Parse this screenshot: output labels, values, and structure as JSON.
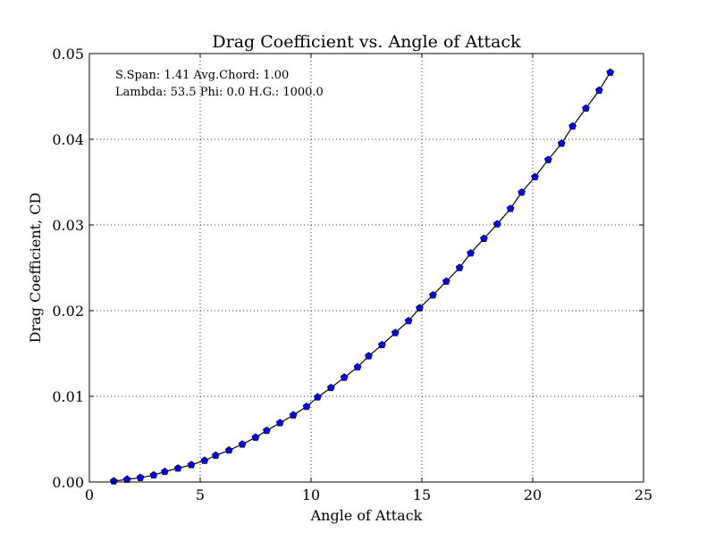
{
  "chart_data": {
    "type": "line",
    "title": "Drag Coefficient vs. Angle of Attack",
    "xlabel": "Angle of Attack",
    "ylabel": "Drag Coefficient, CD",
    "xlim": [
      0,
      25
    ],
    "ylim": [
      0,
      0.05
    ],
    "xticks": [
      "0",
      "5",
      "10",
      "15",
      "20",
      "25"
    ],
    "yticks": [
      "0.00",
      "0.01",
      "0.02",
      "0.03",
      "0.04",
      "0.05"
    ],
    "grid": true,
    "annotations": [
      "S.Span: 1.41 Avg.Chord: 1.00",
      "Lambda: 53.5 Phi:  0.0 H.G.: 1000.0"
    ],
    "series": [
      {
        "line_color": "#000000",
        "marker_color": "#0000ff",
        "marker": "pentagon",
        "x": [
          1.1,
          1.7,
          2.3,
          2.9,
          3.4,
          4.0,
          4.6,
          5.2,
          5.7,
          6.3,
          6.9,
          7.5,
          8.0,
          8.6,
          9.2,
          9.8,
          10.3,
          10.9,
          11.5,
          12.1,
          12.6,
          13.2,
          13.8,
          14.4,
          14.9,
          15.5,
          16.1,
          16.7,
          17.2,
          17.8,
          18.4,
          19.0,
          19.5,
          20.1,
          20.7,
          21.3,
          21.8,
          22.4,
          23.0,
          23.5
        ],
        "y": [
          0.0001,
          0.0003,
          0.0005,
          0.0008,
          0.0012,
          0.0016,
          0.002,
          0.0025,
          0.0031,
          0.0037,
          0.0044,
          0.0052,
          0.006,
          0.0069,
          0.0078,
          0.0088,
          0.0099,
          0.011,
          0.0122,
          0.0134,
          0.0147,
          0.016,
          0.0174,
          0.0188,
          0.0203,
          0.0218,
          0.0234,
          0.025,
          0.0267,
          0.0284,
          0.0301,
          0.0319,
          0.0338,
          0.0356,
          0.0376,
          0.0395,
          0.0415,
          0.0436,
          0.0457,
          0.0478
        ]
      }
    ]
  }
}
